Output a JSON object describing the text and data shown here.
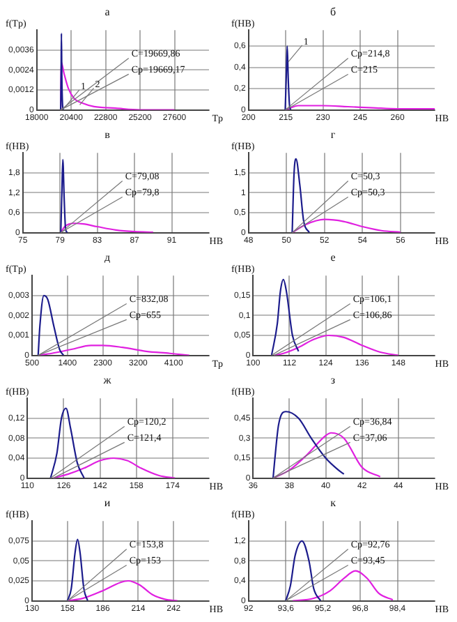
{
  "chart_data": [
    {
      "type": "line",
      "title": "а",
      "ylabel": "f(Tр)",
      "xlabel": "Tр",
      "xlim": [
        18000,
        30000
      ],
      "xticks": [
        18000,
        20400,
        22800,
        25200,
        27600
      ],
      "ylim": [
        0,
        0.0048
      ],
      "yticks": [
        {
          "value": 0,
          "label": "0"
        },
        {
          "value": 0.0012,
          "label": "0,0012"
        },
        {
          "value": 0.0024,
          "label": "0,0024"
        },
        {
          "value": 0.0036,
          "label": "0,0036"
        }
      ],
      "grid": true,
      "legend": false,
      "marker": "none",
      "series": [
        {
          "color": "#1c1c8c",
          "x": [
            19669,
            19700,
            19720,
            19750,
            19800,
            19850
          ],
          "values": [
            0,
            0.002,
            0.0046,
            0.002,
            0.0003,
            0
          ]
        },
        {
          "color": "#e020e0",
          "x": [
            19669,
            19700,
            19900,
            20200,
            20600,
            21200,
            22000,
            23500,
            25200,
            27600
          ],
          "values": [
            0,
            0.0029,
            0.0022,
            0.0013,
            0.0007,
            0.0004,
            0.0002,
            0.0001,
            0,
            0
          ]
        }
      ],
      "annotations": [
        {
          "text": "C=19669,86",
          "x": 19669,
          "y": 0
        },
        {
          "text": "Cр=19669,17",
          "x": 19669,
          "y": 0
        },
        {
          "text": "1",
          "x": 20000,
          "y": 0.0002
        },
        {
          "text": "2",
          "x": 21000,
          "y": 0.0003
        }
      ]
    },
    {
      "type": "line",
      "title": "б",
      "ylabel": "f(HB)",
      "xlabel": "HB",
      "xlim": [
        200,
        275
      ],
      "xticks": [
        200,
        215,
        230,
        245,
        260
      ],
      "ylim": [
        0,
        0.75
      ],
      "yticks": [
        {
          "value": 0,
          "label": "0"
        },
        {
          "value": 0.2,
          "label": "0,2"
        },
        {
          "value": 0.4,
          "label": "0,4"
        },
        {
          "value": 0.6,
          "label": "0,6"
        }
      ],
      "grid": true,
      "legend": false,
      "marker": "none",
      "series": [
        {
          "color": "#1c1c8c",
          "x": [
            214.8,
            215.2,
            215.6,
            216,
            216.5,
            217
          ],
          "values": [
            0,
            0.3,
            0.6,
            0.3,
            0.05,
            0
          ]
        },
        {
          "color": "#e020e0",
          "x": [
            215,
            217,
            220,
            225,
            230,
            240,
            250,
            260,
            275
          ],
          "values": [
            0,
            0.02,
            0.04,
            0.04,
            0.04,
            0.03,
            0.02,
            0.01,
            0.01
          ]
        }
      ],
      "annotations": [
        {
          "text": "Cр=214,8",
          "x": 214.8,
          "y": 0
        },
        {
          "text": "C=215",
          "x": 215,
          "y": 0
        },
        {
          "text": "1",
          "x": 216,
          "y": 0.45
        }
      ]
    },
    {
      "type": "line",
      "title": "в",
      "ylabel": "f(HB)",
      "xlabel": "HB",
      "xlim": [
        75,
        95
      ],
      "xticks": [
        75,
        79,
        83,
        87,
        91
      ],
      "ylim": [
        0,
        2.4
      ],
      "yticks": [
        {
          "value": 0,
          "label": "0"
        },
        {
          "value": 0.6,
          "label": "0,6"
        },
        {
          "value": 1.2,
          "label": "1,2"
        },
        {
          "value": 1.8,
          "label": "1,8"
        }
      ],
      "grid": true,
      "legend": false,
      "marker": "none",
      "series": [
        {
          "color": "#1c1c8c",
          "x": [
            79.08,
            79.2,
            79.3,
            79.45,
            79.6,
            79.8
          ],
          "values": [
            0,
            1.2,
            2.2,
            1,
            0.1,
            0
          ]
        },
        {
          "color": "#e020e0",
          "x": [
            79.08,
            79.5,
            80,
            80.5,
            81.5,
            83,
            85,
            87,
            89
          ],
          "values": [
            0,
            0.18,
            0.26,
            0.28,
            0.26,
            0.18,
            0.08,
            0.03,
            0.01
          ]
        }
      ],
      "annotations": [
        {
          "text": "C=79,08",
          "x": 79.08,
          "y": 0
        },
        {
          "text": "Cр=79,8",
          "x": 79.08,
          "y": 0
        }
      ]
    },
    {
      "type": "line",
      "title": "г",
      "ylabel": "f(HB)",
      "xlabel": "HB",
      "xlim": [
        48,
        57.8
      ],
      "xticks": [
        48,
        50,
        52,
        54,
        56
      ],
      "ylim": [
        0,
        2
      ],
      "yticks": [
        {
          "value": 0,
          "label": "0"
        },
        {
          "value": 0.5,
          "label": "0,5"
        },
        {
          "value": 1,
          "label": "1"
        },
        {
          "value": 1.5,
          "label": "1,5"
        }
      ],
      "grid": true,
      "legend": false,
      "marker": "none",
      "series": [
        {
          "color": "#1c1c8c",
          "x": [
            50.3,
            50.4,
            50.5,
            50.7,
            50.9,
            51.2
          ],
          "values": [
            0,
            1.5,
            1.85,
            1.2,
            0.3,
            0
          ]
        },
        {
          "color": "#e020e0",
          "x": [
            50.3,
            51,
            52,
            53,
            54,
            55,
            56
          ],
          "values": [
            0,
            0.2,
            0.33,
            0.28,
            0.15,
            0.05,
            0.01
          ]
        }
      ],
      "annotations": [
        {
          "text": "C=50,3",
          "x": 50.3,
          "y": 0
        },
        {
          "text": "Cр=50,3",
          "x": 50.3,
          "y": 0
        }
      ]
    },
    {
      "type": "line",
      "title": "д",
      "ylabel": "f(Tр)",
      "xlabel": "Tр",
      "xlim": [
        500,
        5000
      ],
      "xticks": [
        500,
        1400,
        2300,
        3200,
        4100
      ],
      "ylim": [
        0,
        0.004
      ],
      "yticks": [
        {
          "value": 0,
          "label": "0"
        },
        {
          "value": 0.001,
          "label": "0,001"
        },
        {
          "value": 0.002,
          "label": "0,002"
        },
        {
          "value": 0.003,
          "label": "0,003"
        }
      ],
      "grid": true,
      "legend": false,
      "marker": "none",
      "series": [
        {
          "color": "#1c1c8c",
          "x": [
            655,
            700,
            800,
            900,
            1050,
            1200,
            1300
          ],
          "values": [
            0,
            0.0015,
            0.003,
            0.0028,
            0.0015,
            0.0003,
            0
          ]
        },
        {
          "color": "#e020e0",
          "x": [
            655,
            1000,
            1500,
            2000,
            2300,
            2800,
            3400,
            4000,
            4500
          ],
          "values": [
            0,
            0.0001,
            0.0003,
            0.0005,
            0.0005,
            0.0004,
            0.0002,
            0.0001,
            0
          ]
        }
      ],
      "annotations": [
        {
          "text": "C=832,08",
          "x": 655,
          "y": 0
        },
        {
          "text": "Cр=655",
          "x": 655,
          "y": 0
        }
      ]
    },
    {
      "type": "line",
      "title": "е",
      "ylabel": "f(HB)",
      "xlabel": "HB",
      "xlim": [
        100,
        160
      ],
      "xticks": [
        100,
        112,
        124,
        136,
        148
      ],
      "ylim": [
        0,
        0.2
      ],
      "yticks": [
        {
          "value": 0,
          "label": "0"
        },
        {
          "value": 0.05,
          "label": "0,05"
        },
        {
          "value": 0.1,
          "label": "0,1"
        },
        {
          "value": 0.15,
          "label": "0,15"
        }
      ],
      "grid": true,
      "legend": false,
      "marker": "none",
      "series": [
        {
          "color": "#1c1c8c",
          "x": [
            106.1,
            108,
            109,
            110,
            111,
            113,
            115
          ],
          "values": [
            0,
            0.08,
            0.16,
            0.19,
            0.16,
            0.05,
            0.01
          ]
        },
        {
          "color": "#e020e0",
          "x": [
            106.86,
            110,
            115,
            120,
            125,
            130,
            136,
            142,
            148
          ],
          "values": [
            0,
            0.005,
            0.02,
            0.04,
            0.05,
            0.045,
            0.025,
            0.008,
            0
          ]
        }
      ],
      "annotations": [
        {
          "text": "Cр=106,1",
          "x": 106.1,
          "y": 0
        },
        {
          "text": "C=106,86",
          "x": 106.86,
          "y": 0
        }
      ]
    },
    {
      "type": "line",
      "title": "ж",
      "ylabel": "f(HB)",
      "xlabel": "HB",
      "xlim": [
        110,
        190
      ],
      "xticks": [
        110,
        126,
        142,
        158,
        174
      ],
      "ylim": [
        0,
        0.16
      ],
      "yticks": [
        {
          "value": 0,
          "label": "0"
        },
        {
          "value": 0.04,
          "label": "0,04"
        },
        {
          "value": 0.08,
          "label": "0,08"
        },
        {
          "value": 0.12,
          "label": "0,12"
        }
      ],
      "grid": true,
      "legend": false,
      "marker": "none",
      "series": [
        {
          "color": "#1c1c8c",
          "x": [
            120.2,
            123,
            125,
            127,
            129,
            132,
            135
          ],
          "values": [
            0,
            0.05,
            0.12,
            0.14,
            0.1,
            0.03,
            0
          ]
        },
        {
          "color": "#e020e0",
          "x": [
            121.4,
            128,
            135,
            142,
            148,
            154,
            160,
            168,
            175
          ],
          "values": [
            0,
            0.008,
            0.02,
            0.035,
            0.04,
            0.035,
            0.02,
            0.005,
            0
          ]
        }
      ],
      "annotations": [
        {
          "text": "Cр=120,2",
          "x": 120.2,
          "y": 0
        },
        {
          "text": "C=121,4",
          "x": 121.4,
          "y": 0
        }
      ]
    },
    {
      "type": "line",
      "title": "з",
      "ylabel": "f(HB)",
      "xlabel": "HB",
      "xlim": [
        36,
        46
      ],
      "xticks": [
        36,
        38,
        40,
        42,
        44
      ],
      "ylim": [
        0,
        0.6
      ],
      "yticks": [
        {
          "value": 0,
          "label": "0"
        },
        {
          "value": 0.15,
          "label": "0,15"
        },
        {
          "value": 0.3,
          "label": "0,3"
        },
        {
          "value": 0.45,
          "label": "0,45"
        }
      ],
      "grid": true,
      "legend": false,
      "marker": "none",
      "series": [
        {
          "color": "#1c1c8c",
          "x": [
            37.1,
            37.2,
            37.4,
            37.8,
            38.5,
            39.2,
            40,
            40.7,
            41
          ],
          "values": [
            0,
            0.15,
            0.4,
            0.5,
            0.45,
            0.3,
            0.15,
            0.06,
            0.03
          ]
        },
        {
          "color": "#e020e0",
          "x": [
            37.1,
            38,
            39,
            40,
            40.3,
            41,
            42,
            43
          ],
          "values": [
            0,
            0.06,
            0.18,
            0.32,
            0.34,
            0.3,
            0.08,
            0.01
          ]
        }
      ],
      "annotations": [
        {
          "text": "Cр=36,84",
          "x": 37.1,
          "y": 0
        },
        {
          "text": "C=37,06",
          "x": 37.1,
          "y": 0
        }
      ]
    },
    {
      "type": "line",
      "title": "и",
      "ylabel": "f(HB)",
      "xlabel": "HB",
      "xlim": [
        130,
        270
      ],
      "xticks": [
        130,
        158,
        186,
        214,
        242
      ],
      "ylim": [
        0,
        0.1
      ],
      "yticks": [
        {
          "value": 0,
          "label": "0"
        },
        {
          "value": 0.025,
          "label": "0,025"
        },
        {
          "value": 0.05,
          "label": "0,05"
        },
        {
          "value": 0.075,
          "label": "0,075"
        }
      ],
      "grid": true,
      "legend": false,
      "marker": "none",
      "series": [
        {
          "color": "#1c1c8c",
          "x": [
            158,
            161,
            164,
            166,
            168,
            171,
            174
          ],
          "values": [
            0,
            0.015,
            0.06,
            0.077,
            0.06,
            0.015,
            0
          ]
        },
        {
          "color": "#e020e0",
          "x": [
            158,
            170,
            185,
            200,
            206,
            215,
            225,
            235,
            245
          ],
          "values": [
            0,
            0.003,
            0.012,
            0.023,
            0.025,
            0.02,
            0.008,
            0.002,
            0
          ]
        }
      ],
      "annotations": [
        {
          "text": "C=153,8",
          "x": 158,
          "y": 0
        },
        {
          "text": "Cр=153",
          "x": 158,
          "y": 0
        }
      ]
    },
    {
      "type": "line",
      "title": "к",
      "ylabel": "f(HB)",
      "xlabel": "HB",
      "xlim": [
        92,
        100
      ],
      "xticks": [
        92,
        {
          "value": 93.6,
          "label": "93,6"
        },
        {
          "value": 95.2,
          "label": "95,2"
        },
        {
          "value": 96.8,
          "label": "96,8"
        },
        {
          "value": 98.4,
          "label": "98,4"
        }
      ],
      "ylim": [
        0,
        1.6
      ],
      "yticks": [
        {
          "value": 0,
          "label": "0"
        },
        {
          "value": 0.4,
          "label": "0,4"
        },
        {
          "value": 0.8,
          "label": "0,8"
        },
        {
          "value": 1.2,
          "label": "1,2"
        }
      ],
      "grid": true,
      "legend": false,
      "marker": "none",
      "series": [
        {
          "color": "#1c1c8c",
          "x": [
            93.6,
            93.8,
            94,
            94.3,
            94.6,
            94.8,
            95.1
          ],
          "values": [
            0,
            0.3,
            0.9,
            1.2,
            0.8,
            0.25,
            0
          ]
        },
        {
          "color": "#e020e0",
          "x": [
            93.9,
            94.8,
            95.5,
            96.1,
            96.6,
            97.1,
            97.6,
            98.2
          ],
          "values": [
            0,
            0.05,
            0.2,
            0.45,
            0.6,
            0.45,
            0.15,
            0.02
          ]
        }
      ],
      "annotations": [
        {
          "text": "Cр=92,76",
          "x": 93.6,
          "y": 0
        },
        {
          "text": "C=93,45",
          "x": 93.6,
          "y": 0
        }
      ]
    }
  ]
}
